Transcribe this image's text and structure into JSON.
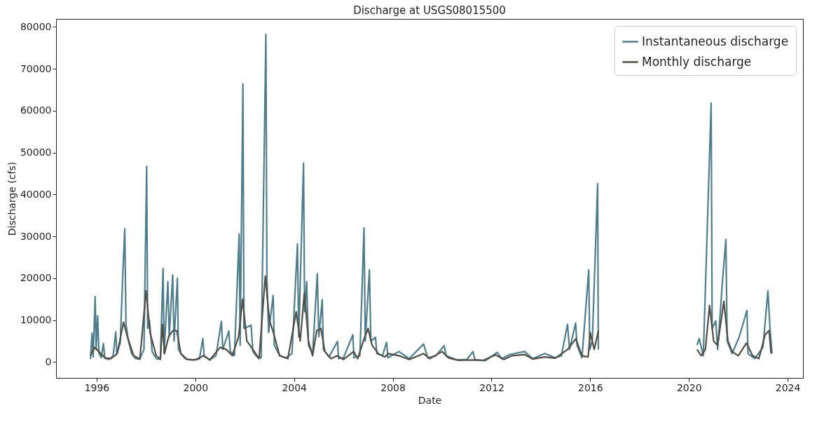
{
  "chart_data": {
    "type": "line",
    "title": "Discharge at USGS08015500",
    "xlabel": "Date",
    "ylabel": "Discharge (cfs)",
    "xlim": [
      "1994-05-10",
      "2024-08-15"
    ],
    "xticks": [
      "1996",
      "2000",
      "2004",
      "2008",
      "2012",
      "2016",
      "2020",
      "2024"
    ],
    "ylim": [
      -3800,
      81900
    ],
    "yticks": [
      0,
      10000,
      20000,
      30000,
      40000,
      50000,
      60000,
      70000,
      80000
    ],
    "grid": false,
    "legend": "top right",
    "line_style": "solid",
    "marker": "none",
    "series": [
      {
        "name": "Instantaneous discharge",
        "color": "#4f7d8c",
        "x": [
          "1995-10-01",
          "1995-10-25",
          "1995-11-10",
          "1995-12-10",
          "1995-12-25",
          "1996-01-15",
          "1996-02-05",
          "1996-03-10",
          "1996-04-10",
          "1996-05-01",
          "1996-07-01",
          "1996-09-01",
          "1996-10-10",
          "1996-10-25",
          "1996-12-15",
          "1997-01-20",
          "1997-02-20",
          "1997-03-10",
          "1997-04-15",
          "1997-06-01",
          "1997-08-01",
          "1997-10-01",
          "1997-12-01",
          "1998-01-10",
          "1998-01-25",
          "1998-02-20",
          "1998-04-01",
          "1998-06-01",
          "1998-08-01",
          "1998-09-10",
          "1998-09-25",
          "1998-11-20",
          "1998-12-10",
          "1999-01-30",
          "1999-02-20",
          "1999-04-10",
          "1999-04-25",
          "1999-06-01",
          "1999-08-01",
          "1999-11-01",
          "2000-03-01",
          "2000-04-20",
          "2000-05-10",
          "2000-08-01",
          "2000-11-01",
          "2001-01-20",
          "2001-02-10",
          "2001-05-10",
          "2001-06-01",
          "2001-08-01",
          "2001-10-10",
          "2001-10-25",
          "2001-12-05",
          "2001-12-20",
          "2002-04-05",
          "2002-05-01",
          "2002-07-01",
          "2002-09-01",
          "2002-11-10",
          "2002-11-25",
          "2002-12-20",
          "2003-02-25",
          "2003-03-15",
          "2003-06-01",
          "2003-09-01",
          "2003-12-01",
          "2004-02-20",
          "2004-03-10",
          "2004-05-20",
          "2004-06-05",
          "2004-07-05",
          "2004-08-01",
          "2004-10-01",
          "2004-12-10",
          "2005-01-01",
          "2005-02-20",
          "2005-03-10",
          "2005-06-01",
          "2005-10-05",
          "2005-10-20",
          "2006-01-01",
          "2006-05-20",
          "2006-06-05",
          "2006-09-01",
          "2006-11-01",
          "2006-11-20",
          "2007-01-20",
          "2007-02-10",
          "2007-04-20",
          "2007-05-10",
          "2007-08-01",
          "2007-10-01",
          "2007-10-20",
          "2008-04-01",
          "2008-09-01",
          "2009-04-01",
          "2009-06-01",
          "2009-10-01",
          "2010-01-30",
          "2010-03-01",
          "2010-08-01",
          "2011-01-01",
          "2011-04-01",
          "2011-05-01",
          "2011-10-01",
          "2012-03-25",
          "2012-06-01",
          "2012-10-01",
          "2013-05-05",
          "2013-09-01",
          "2014-03-01",
          "2014-08-01",
          "2014-11-01",
          "2015-01-30",
          "2015-03-01",
          "2015-05-30",
          "2015-06-20",
          "2015-09-01",
          "2015-12-10",
          "2015-12-25",
          "2016-02-01",
          "2016-04-20",
          "2016-04-30",
          "2018-01-01",
          "2020-05-01",
          "2020-06-01",
          "2020-08-01",
          "2020-11-25",
          "2020-12-10",
          "2021-02-01",
          "2021-03-01",
          "2021-05-15",
          "2021-07-01",
          "2021-07-20",
          "2021-10-01",
          "2022-01-15",
          "2022-05-08",
          "2022-05-25",
          "2022-09-01",
          "2023-01-01",
          "2023-03-15",
          "2023-04-15",
          "2023-05-15"
        ],
        "values": [
          700,
          6900,
          1200,
          15600,
          3000,
          11000,
          2000,
          1000,
          4400,
          900,
          600,
          1500,
          7200,
          2000,
          4500,
          20000,
          31800,
          9000,
          5000,
          2000,
          800,
          700,
          3000,
          46700,
          8000,
          10000,
          2500,
          800,
          600,
          22300,
          2000,
          19200,
          6000,
          20800,
          5000,
          20000,
          3000,
          2000,
          800,
          500,
          700,
          5600,
          1500,
          500,
          1500,
          9700,
          3000,
          7400,
          2500,
          1500,
          30600,
          4000,
          66400,
          8000,
          8800,
          2500,
          1200,
          1000,
          78200,
          20000,
          7000,
          15900,
          4000,
          1500,
          1000,
          2000,
          28200,
          6000,
          47500,
          12000,
          19200,
          4000,
          2000,
          21100,
          6000,
          14900,
          3000,
          1200,
          4900,
          800,
          1000,
          6500,
          1000,
          1500,
          32000,
          5000,
          22000,
          5000,
          5900,
          2000,
          1500,
          4700,
          1000,
          2500,
          800,
          4300,
          1000,
          1500,
          3900,
          1500,
          500,
          600,
          2500,
          500,
          300,
          2300,
          800,
          1800,
          2500,
          800,
          2000,
          1000,
          1500,
          9000,
          3000,
          9300,
          4000,
          1000,
          22000,
          3000,
          5000,
          42600,
          3000,
          null,
          4000,
          5600,
          1500,
          61800,
          8000,
          9800,
          3000,
          20000,
          29300,
          5000,
          2000,
          6000,
          12300,
          2000,
          800,
          3500,
          17000,
          8000,
          2000
        ]
      },
      {
        "name": "Monthly discharge",
        "color": "#514e45",
        "x": [
          "1995-10",
          "1995-12",
          "1996-02",
          "1996-05",
          "1996-08",
          "1996-11",
          "1997-02",
          "1997-04",
          "1997-07",
          "1997-10",
          "1998-01",
          "1998-03",
          "1998-06",
          "1998-08",
          "1998-09",
          "1998-10",
          "1998-12",
          "1999-02",
          "1999-04",
          "1999-06",
          "1999-09",
          "2000-01",
          "2000-05",
          "2000-08",
          "2001-01",
          "2001-04",
          "2001-07",
          "2001-10",
          "2001-12",
          "2002-02",
          "2002-05",
          "2002-08",
          "2002-11",
          "2003-01",
          "2003-03",
          "2003-06",
          "2003-10",
          "2004-02",
          "2004-04",
          "2004-06",
          "2004-08",
          "2004-10",
          "2004-12",
          "2005-02",
          "2005-04",
          "2005-07",
          "2005-10",
          "2006-01",
          "2006-06",
          "2006-08",
          "2006-11",
          "2007-01",
          "2007-03",
          "2007-06",
          "2007-09",
          "2007-11",
          "2008-04",
          "2008-09",
          "2009-04",
          "2009-07",
          "2010-01",
          "2010-04",
          "2010-09",
          "2011-05",
          "2011-09",
          "2012-03",
          "2012-07",
          "2012-11",
          "2013-05",
          "2013-09",
          "2014-03",
          "2014-08",
          "2015-02",
          "2015-06",
          "2015-09",
          "2015-12",
          "2016-01",
          "2016-03",
          "2016-05",
          "2018-01",
          "2020-05",
          "2020-07",
          "2020-09",
          "2020-11",
          "2021-01",
          "2021-03",
          "2021-06",
          "2021-08",
          "2021-10",
          "2022-01",
          "2022-05",
          "2022-08",
          "2022-11",
          "2023-02",
          "2023-04",
          "2023-05"
        ],
        "values": [
          1500,
          3500,
          2500,
          1000,
          800,
          2000,
          9500,
          6000,
          1500,
          700,
          17000,
          7000,
          1500,
          700,
          9000,
          2000,
          6000,
          7500,
          7500,
          2000,
          600,
          500,
          1500,
          500,
          3500,
          3000,
          1500,
          6000,
          15000,
          5000,
          3000,
          800,
          20500,
          10000,
          7000,
          1500,
          800,
          12000,
          5000,
          16500,
          5000,
          1500,
          7500,
          8000,
          2500,
          800,
          1500,
          600,
          2500,
          800,
          5500,
          8000,
          4000,
          2000,
          1200,
          2000,
          1500,
          600,
          2000,
          800,
          2500,
          1000,
          400,
          500,
          400,
          1700,
          600,
          1500,
          1800,
          700,
          1200,
          900,
          3000,
          5500,
          1500,
          1200,
          7000,
          3000,
          7500,
          null,
          3000,
          1500,
          3000,
          13500,
          5000,
          4000,
          14500,
          5000,
          2500,
          1500,
          4500,
          1500,
          800,
          6500,
          7500,
          2000
        ]
      }
    ]
  }
}
